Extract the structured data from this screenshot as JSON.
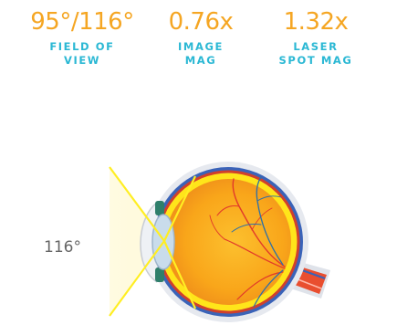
{
  "stats": [
    {
      "value": "95°/116°",
      "label_line1": "FIELD OF",
      "label_line2": "VIEW"
    },
    {
      "value": "0.76x",
      "label_line1": "IMAGE",
      "label_line2": "MAG"
    },
    {
      "value": "1.32x",
      "label_line1": "LASER",
      "label_line2": "SPOT MAG"
    }
  ],
  "diagram": {
    "angle_label": "116°"
  },
  "colors": {
    "value_accent": "#f5a623",
    "label_accent": "#2bb8d4",
    "beam": "#ffee22",
    "eye_fill": "#f9a61a",
    "sclera_blue": "#3a63b8",
    "optic_nerve": "#e94e2f"
  }
}
